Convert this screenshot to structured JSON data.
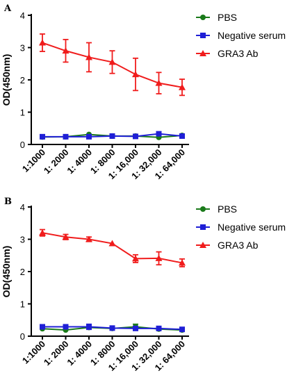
{
  "chart_data": [
    {
      "type": "line",
      "panel_label": "A",
      "ylabel": "OD(450nm)",
      "ylim": [
        0,
        4
      ],
      "yticks": [
        "0",
        "1",
        "2",
        "3",
        "4"
      ],
      "categories": [
        "1:1000",
        "1: 2000",
        "1: 4000",
        "1: 8000",
        "1: 16,000",
        "1: 32,000",
        "1: 64,000"
      ],
      "legend_position": "top-right",
      "series": [
        {
          "name": "PBS",
          "color": "#1a7a1a",
          "marker": "circle",
          "values": [
            0.23,
            0.24,
            0.31,
            0.26,
            0.26,
            0.22,
            0.28
          ],
          "errors": [
            0.02,
            0.02,
            0.03,
            0.02,
            0.02,
            0.02,
            0.02
          ]
        },
        {
          "name": "Negative serum",
          "color": "#1f1fd6",
          "marker": "square",
          "values": [
            0.24,
            0.24,
            0.24,
            0.26,
            0.25,
            0.33,
            0.26
          ],
          "errors": [
            0.02,
            0.02,
            0.02,
            0.02,
            0.02,
            0.03,
            0.02
          ]
        },
        {
          "name": "GRA3 Ab",
          "color": "#f01c1c",
          "marker": "triangle",
          "values": [
            3.15,
            2.9,
            2.7,
            2.55,
            2.17,
            1.9,
            1.77
          ],
          "errors": [
            0.27,
            0.35,
            0.45,
            0.35,
            0.5,
            0.33,
            0.25
          ]
        }
      ]
    },
    {
      "type": "line",
      "panel_label": "B",
      "ylabel": "OD(450nm)",
      "ylim": [
        0,
        4
      ],
      "yticks": [
        "0",
        "1",
        "2",
        "3",
        "4"
      ],
      "categories": [
        "1:1000",
        "1: 2000",
        "1: 4000",
        "1: 8000",
        "1: 16,000",
        "1: 32,000",
        "1: 64,000"
      ],
      "legend_position": "top-right",
      "series": [
        {
          "name": "PBS",
          "color": "#1a7a1a",
          "marker": "circle",
          "values": [
            0.23,
            0.19,
            0.27,
            0.24,
            0.29,
            0.22,
            0.19
          ],
          "errors": [
            0.02,
            0.02,
            0.05,
            0.02,
            0.08,
            0.02,
            0.02
          ]
        },
        {
          "name": "Negative serum",
          "color": "#1f1fd6",
          "marker": "square",
          "values": [
            0.29,
            0.29,
            0.29,
            0.25,
            0.24,
            0.24,
            0.21
          ],
          "errors": [
            0.02,
            0.02,
            0.08,
            0.02,
            0.02,
            0.02,
            0.02
          ]
        },
        {
          "name": "GRA3 Ab",
          "color": "#f01c1c",
          "marker": "triangle",
          "values": [
            3.2,
            3.07,
            3.0,
            2.87,
            2.4,
            2.41,
            2.27
          ],
          "errors": [
            0.1,
            0.08,
            0.07,
            0.03,
            0.12,
            0.2,
            0.12
          ]
        }
      ]
    }
  ]
}
